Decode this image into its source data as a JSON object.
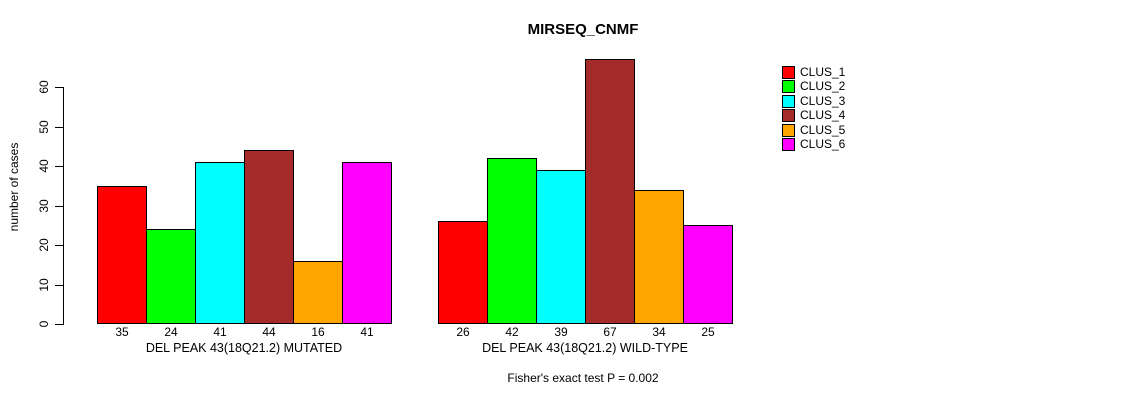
{
  "figure": {
    "background": "#FFFFFF",
    "text_color": "#000000",
    "axis_color": "#000000"
  },
  "chart_data": {
    "type": "bar",
    "title": "MIRSEQ_CNMF",
    "ylabel": "number of cases",
    "xlabel": "",
    "ylim": [
      0,
      60
    ],
    "yticks": [
      0,
      10,
      20,
      30,
      40,
      50,
      60
    ],
    "grid": false,
    "legend_position": "right",
    "bar_value_labels_shown": true,
    "categories": [
      "DEL PEAK 43(18Q21.2) MUTATED",
      "DEL PEAK 43(18Q21.2) WILD-TYPE"
    ],
    "series": [
      {
        "name": "CLUS_1",
        "color": "#FF0000",
        "values": [
          35,
          26
        ]
      },
      {
        "name": "CLUS_2",
        "color": "#00FF00",
        "values": [
          24,
          42
        ]
      },
      {
        "name": "CLUS_3",
        "color": "#00FFFF",
        "values": [
          41,
          39
        ]
      },
      {
        "name": "CLUS_4",
        "color": "#A52A2A",
        "values": [
          44,
          67
        ]
      },
      {
        "name": "CLUS_5",
        "color": "#FFA500",
        "values": [
          16,
          34
        ]
      },
      {
        "name": "CLUS_6",
        "color": "#FF00FF",
        "values": [
          41,
          25
        ]
      }
    ],
    "annotation": "Fisher's exact test P = 0.002"
  }
}
